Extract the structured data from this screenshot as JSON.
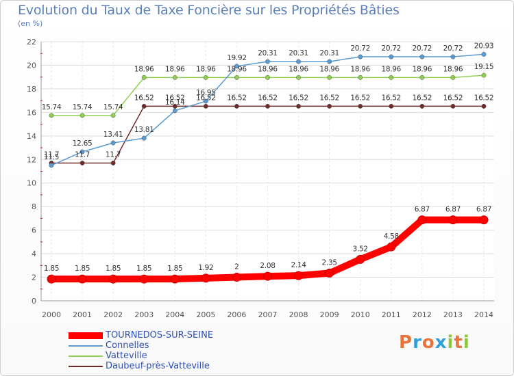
{
  "header": {
    "title": "Evolution du Taux de Taxe Foncière sur les Propriétés Bâties",
    "subtitle": "(en %)"
  },
  "logo": {
    "text": "Proxiti",
    "colors": [
      "#e8743b",
      "#2e9fd8",
      "#e8743b",
      "#2e9fd8",
      "#8dc63f",
      "#e8743b",
      "#8dc63f"
    ]
  },
  "chart_data": {
    "type": "line",
    "x": [
      2000,
      2001,
      2002,
      2003,
      2004,
      2005,
      2006,
      2007,
      2008,
      2009,
      2010,
      2011,
      2012,
      2013,
      2014
    ],
    "ylim": [
      0,
      22
    ],
    "yticks": [
      0,
      2,
      4,
      6,
      8,
      10,
      12,
      14,
      16,
      18,
      20,
      22
    ],
    "grid": true,
    "series": [
      {
        "name": "TOURNEDOS-SUR-SEINE",
        "color": "#ff0000",
        "values": [
          1.85,
          1.85,
          1.85,
          1.85,
          1.85,
          1.92,
          2,
          2.08,
          2.14,
          2.35,
          3.52,
          4.58,
          6.87,
          6.87,
          6.87
        ],
        "labels": [
          "1.85",
          "1.85",
          "1.85",
          "1.85",
          "1.85",
          "1.92",
          "2",
          "2.08",
          "2.14",
          "2.35",
          "3.52",
          "4.58",
          "6.87",
          "6.87",
          "6.87"
        ]
      },
      {
        "name": "Connelles",
        "color": "#5a9bd4",
        "values": [
          11.5,
          12.65,
          13.41,
          13.81,
          16.14,
          16.95,
          19.92,
          20.31,
          20.31,
          20.31,
          20.72,
          20.72,
          20.72,
          20.72,
          20.93
        ],
        "labels": [
          "11.5",
          "12.65",
          "13.41",
          "13.81",
          "16.14",
          "16.95",
          "19.92",
          "20.31",
          "20.31",
          "20.31",
          "20.72",
          "20.72",
          "20.72",
          "20.72",
          "20.93"
        ]
      },
      {
        "name": "Vatteville",
        "color": "#8fd14f",
        "values": [
          15.74,
          15.74,
          15.74,
          18.96,
          18.96,
          18.96,
          18.96,
          18.96,
          18.96,
          18.96,
          18.96,
          18.96,
          18.96,
          18.96,
          19.15
        ],
        "labels": [
          "15.74",
          "15.74",
          "15.74",
          "18.96",
          "18.96",
          "18.96",
          "18.96",
          "18.96",
          "18.96",
          "18.96",
          "18.96",
          "18.96",
          "18.96",
          "18.96",
          "19.15"
        ]
      },
      {
        "name": "Daubeuf-près-Vatteville",
        "color": "#6e2b2b",
        "values": [
          11.7,
          11.7,
          11.7,
          16.52,
          16.52,
          16.52,
          16.52,
          16.52,
          16.52,
          16.52,
          16.52,
          16.52,
          16.52,
          16.52,
          16.52
        ],
        "labels": [
          "11.7",
          "11.7",
          "11.7",
          "16.52",
          "16.52",
          "16.52",
          "16.52",
          "16.52",
          "16.52",
          "16.52",
          "16.52",
          "16.52",
          "16.52",
          "16.52",
          "16.52"
        ]
      }
    ]
  }
}
